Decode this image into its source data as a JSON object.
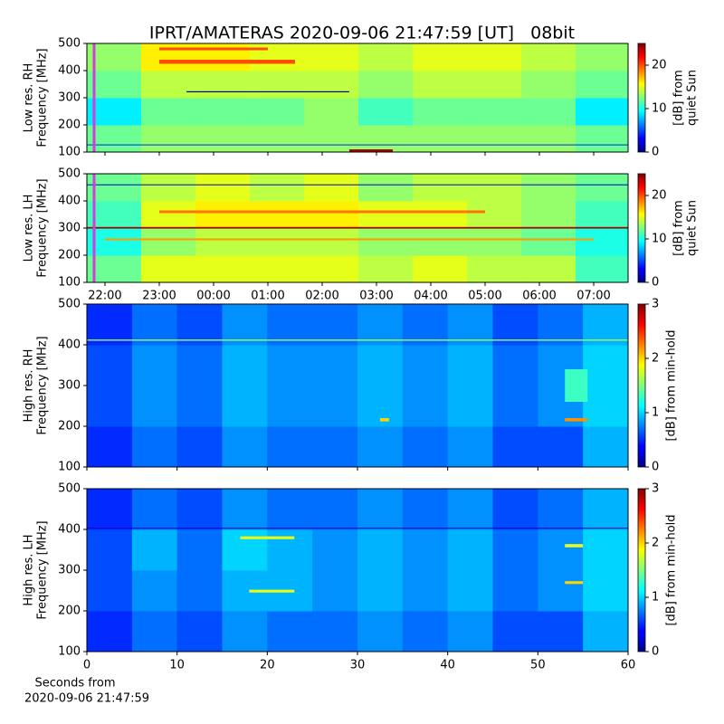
{
  "figure": {
    "title": "IPRT/AMATERAS 2020-09-06 21:47:59 [UT]   08bit",
    "xlabel": [
      "Seconds from",
      "2020-09-06 21:47:59"
    ]
  },
  "chart_data": [
    {
      "type": "heatmap",
      "ylabel": [
        "Low res. RH",
        "Frequency [MHz]"
      ],
      "colorbar_label": [
        "[dB] from",
        "quiet Sun"
      ],
      "xlim": [
        21.667,
        31.633
      ],
      "ylim": [
        100,
        500
      ],
      "yticks": [
        100,
        200,
        300,
        400,
        500
      ],
      "clim": [
        0,
        25
      ],
      "cticks": [
        0,
        10,
        20
      ],
      "colormap": "jet",
      "x_edges": [
        21.667,
        22.667,
        23.667,
        24.667,
        25.667,
        26.667,
        27.667,
        28.667,
        29.667,
        30.667,
        31.633
      ],
      "y_edges": [
        100,
        200,
        300,
        400,
        500
      ],
      "z": [
        [
          12,
          13,
          13,
          13,
          13,
          13,
          13,
          13,
          13,
          12
        ],
        [
          9,
          12,
          12,
          12,
          13,
          11,
          12,
          12,
          12,
          9
        ],
        [
          12,
          14,
          14,
          14,
          14,
          13,
          14,
          14,
          13,
          12
        ],
        [
          13,
          16,
          16,
          15,
          15,
          14,
          15,
          15,
          14,
          13
        ]
      ],
      "bands": [
        {
          "x0": 23,
          "x1": 25.5,
          "y0": 425,
          "y1": 440,
          "value": 20
        },
        {
          "x0": 23,
          "x1": 25,
          "y0": 475,
          "y1": 485,
          "value": 20
        },
        {
          "x0": 23.5,
          "x1": 26.5,
          "y0": 320,
          "y1": 324,
          "value": 0
        },
        {
          "x0": 26.5,
          "x1": 27.3,
          "y0": 100,
          "y1": 110,
          "value": 24
        },
        {
          "x0": 21.667,
          "x1": 31.633,
          "y0": 125,
          "y1": 128,
          "value": 4
        }
      ],
      "marker_x": 21.8,
      "marker_color": "#d63be0"
    },
    {
      "type": "heatmap",
      "ylabel": [
        "Low res. LH",
        "Frequency [MHz]"
      ],
      "colorbar_label": [
        "[dB] from",
        "quiet Sun"
      ],
      "xlim": [
        21.667,
        31.633
      ],
      "ylim": [
        100,
        500
      ],
      "yticks": [
        100,
        200,
        300,
        400,
        500
      ],
      "xticks": [
        {
          "value": 22,
          "label": "22:00"
        },
        {
          "value": 23,
          "label": "23:00"
        },
        {
          "value": 24,
          "label": "00:00"
        },
        {
          "value": 25,
          "label": "01:00"
        },
        {
          "value": 26,
          "label": "02:00"
        },
        {
          "value": 27,
          "label": "03:00"
        },
        {
          "value": 28,
          "label": "04:00"
        },
        {
          "value": 29,
          "label": "05:00"
        },
        {
          "value": 30,
          "label": "06:00"
        },
        {
          "value": 31,
          "label": "07:00"
        }
      ],
      "clim": [
        0,
        25
      ],
      "cticks": [
        0,
        10,
        20
      ],
      "colormap": "jet",
      "x_edges": [
        21.667,
        22.667,
        23.667,
        24.667,
        25.667,
        26.667,
        27.667,
        28.667,
        29.667,
        30.667,
        31.633
      ],
      "y_edges": [
        100,
        200,
        300,
        400,
        500
      ],
      "z": [
        [
          12,
          15,
          15,
          15,
          15,
          14,
          15,
          14,
          14,
          11
        ],
        [
          10,
          13,
          14,
          14,
          14,
          13,
          13,
          13,
          12,
          10
        ],
        [
          11,
          15,
          16,
          16,
          16,
          15,
          15,
          14,
          13,
          11
        ],
        [
          12,
          14,
          15,
          14,
          15,
          13,
          14,
          14,
          13,
          12
        ]
      ],
      "bands": [
        {
          "x0": 21.667,
          "x1": 31.633,
          "y0": 298,
          "y1": 304,
          "value": 24
        },
        {
          "x0": 23,
          "x1": 29,
          "y0": 355,
          "y1": 365,
          "value": 19
        },
        {
          "x0": 22,
          "x1": 31,
          "y0": 255,
          "y1": 262,
          "value": 18
        },
        {
          "x0": 21.667,
          "x1": 31.633,
          "y0": 458,
          "y1": 461,
          "value": 2
        }
      ],
      "marker_x": 21.8,
      "marker_color": "#d63be0"
    },
    {
      "type": "heatmap",
      "ylabel": [
        "High res. RH",
        "Frequency [MHz]"
      ],
      "colorbar_label": [
        "[dB] from min-hold"
      ],
      "xlim": [
        0,
        60
      ],
      "ylim": [
        100,
        500
      ],
      "yticks": [
        100,
        200,
        300,
        400,
        500
      ],
      "clim": [
        0,
        3
      ],
      "cticks": [
        0,
        1,
        2,
        3
      ],
      "colormap": "jet",
      "x_edges": [
        0,
        5,
        10,
        15,
        20,
        25,
        30,
        35,
        40,
        45,
        50,
        55,
        60
      ],
      "y_edges": [
        100,
        200,
        300,
        400,
        500
      ],
      "z": [
        [
          0.5,
          0.7,
          0.6,
          0.8,
          0.7,
          0.7,
          0.8,
          0.7,
          0.8,
          0.6,
          0.6,
          0.9
        ],
        [
          0.6,
          0.8,
          0.7,
          0.9,
          0.8,
          0.8,
          0.9,
          0.8,
          0.9,
          0.7,
          0.8,
          1.0
        ],
        [
          0.6,
          0.8,
          0.7,
          0.9,
          0.8,
          0.8,
          0.9,
          0.8,
          0.9,
          0.7,
          0.8,
          1.0
        ],
        [
          0.5,
          0.7,
          0.6,
          0.8,
          0.7,
          0.7,
          0.8,
          0.7,
          0.8,
          0.6,
          0.7,
          0.9
        ]
      ],
      "bands": [
        {
          "x0": 53,
          "x1": 55.5,
          "y0": 212,
          "y1": 220,
          "value": 2.2
        },
        {
          "x0": 0,
          "x1": 60,
          "y0": 410,
          "y1": 413,
          "value": 1.6
        },
        {
          "x0": 53,
          "x1": 55.5,
          "y0": 260,
          "y1": 340,
          "value": 1.3
        },
        {
          "x0": 32.5,
          "x1": 33.5,
          "y0": 212,
          "y1": 220,
          "value": 2.0
        }
      ],
      "marker_x": null
    },
    {
      "type": "heatmap",
      "ylabel": [
        "High res. LH",
        "Frequency [MHz]"
      ],
      "colorbar_label": [
        "[dB] from min-hold"
      ],
      "xlim": [
        0,
        60
      ],
      "ylim": [
        100,
        500
      ],
      "yticks": [
        100,
        200,
        300,
        400,
        500
      ],
      "xticks": [
        0,
        10,
        20,
        30,
        40,
        50,
        60
      ],
      "clim": [
        0,
        3
      ],
      "cticks": [
        0,
        1,
        2,
        3
      ],
      "colormap": "jet",
      "x_edges": [
        0,
        5,
        10,
        15,
        20,
        25,
        30,
        35,
        40,
        45,
        50,
        55,
        60
      ],
      "y_edges": [
        100,
        200,
        300,
        400,
        500
      ],
      "z": [
        [
          0.5,
          0.7,
          0.6,
          0.8,
          0.7,
          0.7,
          0.8,
          0.7,
          0.8,
          0.6,
          0.6,
          0.9
        ],
        [
          0.6,
          0.8,
          0.7,
          0.9,
          0.9,
          0.8,
          0.9,
          0.8,
          0.9,
          0.7,
          0.8,
          1.0
        ],
        [
          0.6,
          0.9,
          0.7,
          1.0,
          0.9,
          0.8,
          0.9,
          0.8,
          0.9,
          0.7,
          0.8,
          1.0
        ],
        [
          0.5,
          0.7,
          0.6,
          0.8,
          0.7,
          0.7,
          0.8,
          0.7,
          0.8,
          0.6,
          0.7,
          0.9
        ]
      ],
      "bands": [
        {
          "x0": 17,
          "x1": 23,
          "y0": 376,
          "y1": 383,
          "value": 1.8
        },
        {
          "x0": 18,
          "x1": 23,
          "y0": 245,
          "y1": 252,
          "value": 1.8
        },
        {
          "x0": 53,
          "x1": 55,
          "y0": 266,
          "y1": 273,
          "value": 2.0
        },
        {
          "x0": 53,
          "x1": 55,
          "y0": 356,
          "y1": 364,
          "value": 1.8
        },
        {
          "x0": 0,
          "x1": 60,
          "y0": 402,
          "y1": 404,
          "value": 0.2
        }
      ],
      "marker_x": null
    }
  ]
}
